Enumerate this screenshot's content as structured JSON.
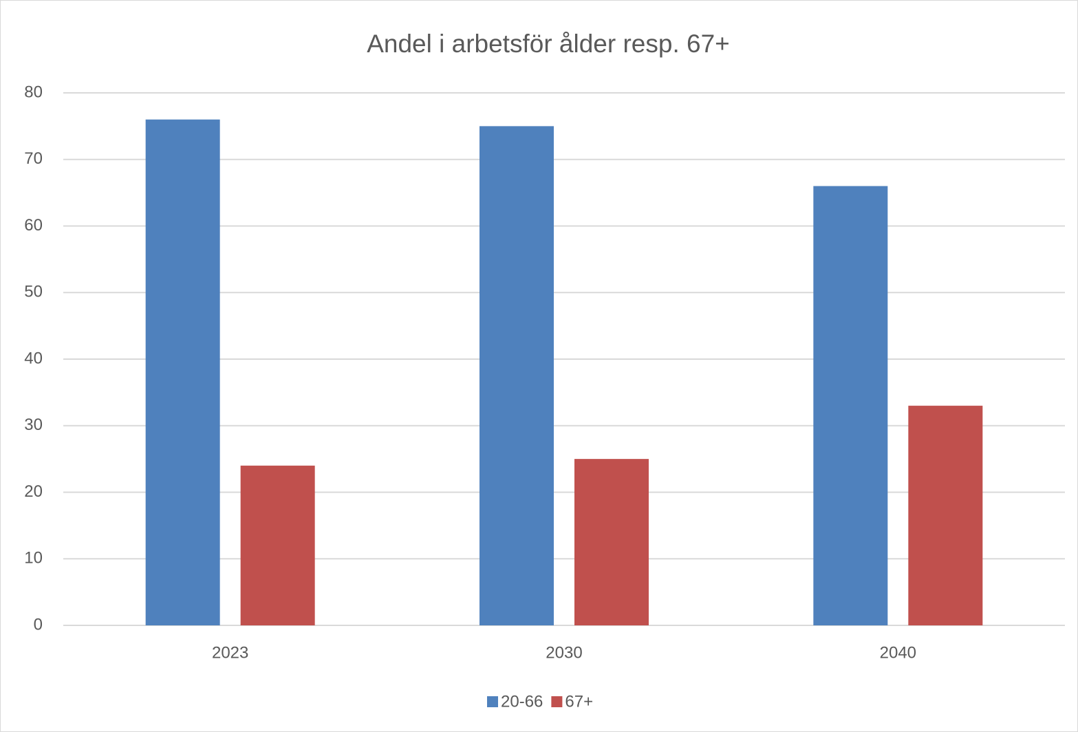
{
  "chart_data": {
    "type": "bar",
    "title": "Andel i arbetsför ålder resp. 67+",
    "categories": [
      "2023",
      "2030",
      "2040"
    ],
    "series": [
      {
        "name": "20-66",
        "color": "#4f81bd",
        "values": [
          76,
          75,
          66
        ]
      },
      {
        "name": "67+",
        "color": "#c0504d",
        "values": [
          24,
          25,
          33
        ]
      }
    ],
    "ylim": [
      0,
      80
    ],
    "yticks": [
      0,
      10,
      20,
      30,
      40,
      50,
      60,
      70,
      80
    ],
    "grid": true,
    "legend": "bottom"
  }
}
